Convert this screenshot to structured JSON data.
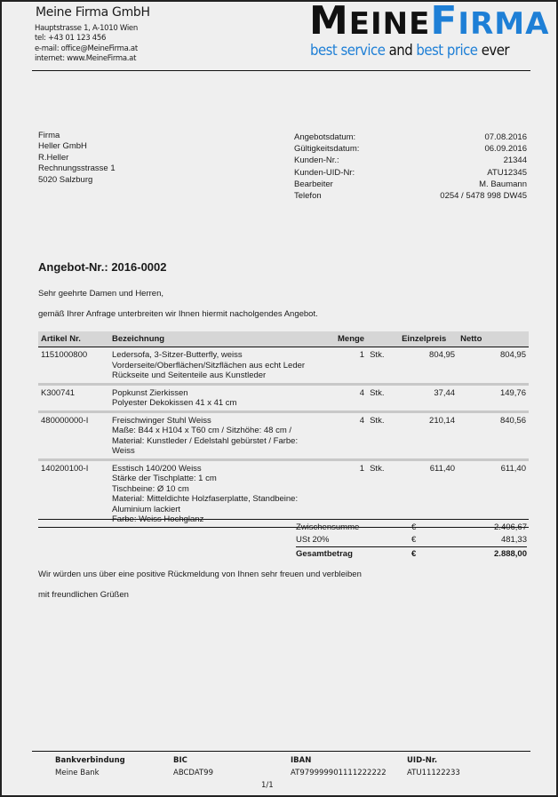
{
  "sender": {
    "company_name": "Meine Firma GmbH",
    "address": "Hauptstrasse 1, A-1010 Wien",
    "tel": "tel: +43 01 123 456",
    "email": "e-mail: office@MeineFirma.at",
    "internet": "internet: www.MeineFirma.at"
  },
  "logo": {
    "word1": "MeineFirma",
    "tagline": [
      "best service",
      " and ",
      "best price",
      " ever"
    ],
    "colors": {
      "dark": "#111111",
      "blue": "#1e7fd6"
    }
  },
  "recipient": {
    "lines": [
      "Firma",
      "Heller GmbH",
      "R.Heller",
      "Rechnungsstrasse 1",
      "5020 Salzburg"
    ]
  },
  "meta": [
    {
      "label": "Angebotsdatum:",
      "value": "07.08.2016"
    },
    {
      "label": "Gültigkeitsdatum:",
      "value": "06.09.2016"
    },
    {
      "label": "Kunden-Nr.:",
      "value": "21344"
    },
    {
      "label": "Kunden-UID-Nr:",
      "value": "ATU12345"
    },
    {
      "label": "Bearbeiter",
      "value": "M. Baumann"
    },
    {
      "label": "Telefon",
      "value": "0254 / 5478 998 DW45"
    }
  ],
  "offer": {
    "title": "Angebot-Nr.: 2016-0002",
    "greeting": "Sehr geehrte Damen und Herren,",
    "intro": "gemäß Ihrer Anfrage unterbreiten wir Ihnen hiermit nacholgendes Angebot."
  },
  "table": {
    "headers": {
      "article": "Artikel Nr.",
      "description": "Bezeichnung",
      "quantity": "Menge",
      "unit_price": "Einzelpreis",
      "net": "Netto"
    },
    "rows": [
      {
        "article": "1151000800",
        "description": [
          "Ledersofa, 3-Sitzer-Butterfly, weiss",
          "Vorderseite/Oberflächen/Sitzflächen aus echt Leder",
          "Rückseite und Seitenteile aus Kunstleder"
        ],
        "qty": "1",
        "unit": "Stk.",
        "unit_price": "804,95",
        "net": "804,95"
      },
      {
        "article": "K300741",
        "description": [
          "Popkunst Zierkissen",
          "Polyester Dekokissen 41 x 41 cm"
        ],
        "qty": "4",
        "unit": "Stk.",
        "unit_price": "37,44",
        "net": "149,76"
      },
      {
        "article": "480000000-I",
        "description": [
          "Freischwinger Stuhl Weiss",
          "Maße: B44 x H104 x T60 cm / Sitzhöhe: 48 cm /",
          "Material: Kunstleder / Edelstahl gebürstet / Farbe:",
          "Weiss"
        ],
        "qty": "4",
        "unit": "Stk.",
        "unit_price": "210,14",
        "net": "840,56"
      },
      {
        "article": "140200100-I",
        "description": [
          "Esstisch 140/200 Weiss",
          "Stärke der Tischplatte: 1 cm",
          "Tischbeine: Ø 10 cm",
          "Material: Mitteldichte Holzfaserplatte, Standbeine:",
          "Aluminium lackiert",
          "Farbe: Weiss Hochglanz"
        ],
        "qty": "1",
        "unit": "Stk.",
        "unit_price": "611,40",
        "net": "611,40"
      }
    ]
  },
  "totals": [
    {
      "label": "Zwischensumme",
      "currency": "€",
      "value": "2.406,67"
    },
    {
      "label": "USt 20%",
      "currency": "€",
      "value": "481,33"
    },
    {
      "label": "Gesamtbetrag",
      "currency": "€",
      "value": "2.888,00"
    }
  ],
  "closing": "Wir würden uns über eine positive Rückmeldung von Ihnen sehr freuen und verbleiben",
  "regards": "mit freundlichen Grüßen",
  "footer": {
    "bank_label": "Bankverbindung",
    "bank_value": "Meine Bank",
    "bic_label": "BIC",
    "bic_value": "ABCDAT99",
    "iban_label": "IBAN",
    "iban_value": "AT979999901111222222",
    "uid_label": "UID-Nr.",
    "uid_value": "ATU11122233",
    "page": "1/1"
  }
}
